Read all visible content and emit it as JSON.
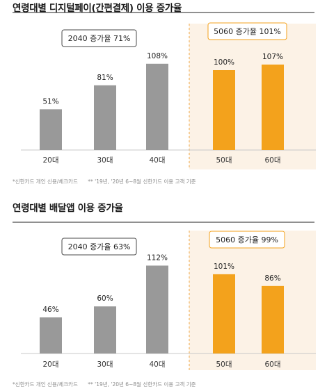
{
  "chart_data": [
    {
      "type": "bar",
      "title": "연령대별 디지털페이(간편결제) 이용 증가율",
      "categories": [
        "20대",
        "30대",
        "40대",
        "50대",
        "60대"
      ],
      "values": [
        51,
        81,
        108,
        100,
        107
      ],
      "data_labels": [
        "51%",
        "81%",
        "108%",
        "100%",
        "107%"
      ],
      "ylim": [
        0,
        120
      ],
      "grid": false,
      "colors": [
        "#999999",
        "#999999",
        "#999999",
        "#f3a21c",
        "#f3a21c"
      ],
      "callouts": [
        {
          "text": "2040 증가율 71%",
          "group": "20-40"
        },
        {
          "text": "5060 증가율 101%",
          "group": "50-60"
        }
      ],
      "footnotes": [
        "*신한카드 개인 신용/체크카드",
        "** '19년, '20년 6~8월 신한카드 이용 고객 기준"
      ]
    },
    {
      "type": "bar",
      "title": "연령대별 배달앱 이용 증가율",
      "categories": [
        "20대",
        "30대",
        "40대",
        "50대",
        "60대"
      ],
      "values": [
        46,
        60,
        112,
        101,
        86
      ],
      "data_labels": [
        "46%",
        "60%",
        "112%",
        "101%",
        "86%"
      ],
      "ylim": [
        0,
        120
      ],
      "grid": false,
      "colors": [
        "#999999",
        "#999999",
        "#999999",
        "#f3a21c",
        "#f3a21c"
      ],
      "callouts": [
        {
          "text": "2040 증가율 63%",
          "group": "20-40"
        },
        {
          "text": "5060 증가율 99%",
          "group": "50-60"
        }
      ],
      "footnotes": [
        "*신한카드 개인 신용/체크카드",
        "** '19년, '20년 6~8월 신한카드 이용 고객 기준"
      ]
    }
  ],
  "style": {
    "gray_bar": "#999999",
    "orange_bar": "#f3a21c",
    "highlight_bg": "#fcf2e6",
    "divider": "#f0a848",
    "callout_orange_border": "#f3a21c"
  }
}
